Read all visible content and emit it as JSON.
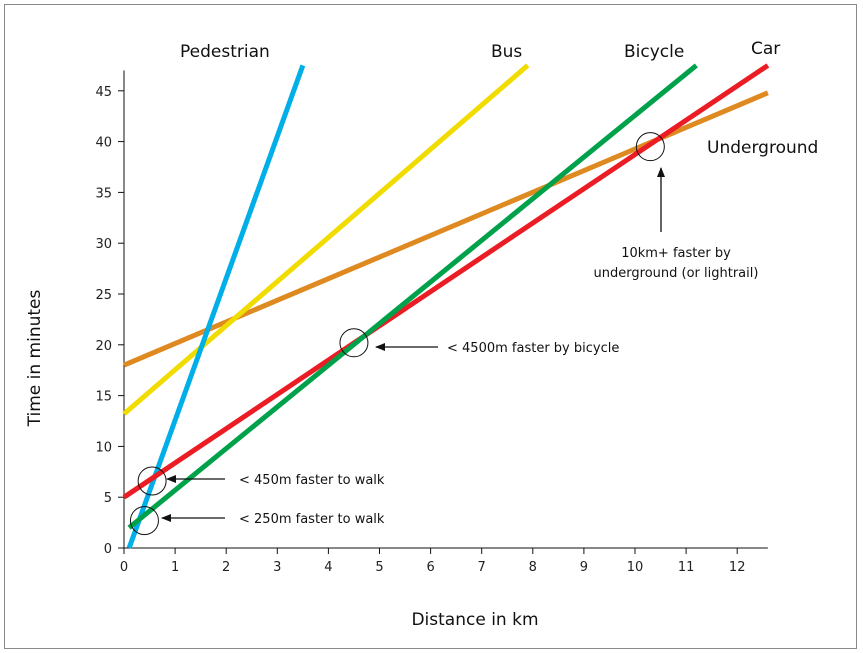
{
  "chart_data": {
    "type": "line",
    "title": "",
    "xlabel": "Distance in km",
    "ylabel": "Time in minutes",
    "xlim": [
      0,
      12.6
    ],
    "ylim": [
      0,
      47
    ],
    "x_ticks": [
      "0",
      "1",
      "2",
      "3",
      "4",
      "5",
      "6",
      "7",
      "8",
      "9",
      "10",
      "11",
      "12"
    ],
    "y_ticks": [
      "0",
      "5",
      "10",
      "15",
      "20",
      "25",
      "30",
      "35",
      "40",
      "45"
    ],
    "grid": false,
    "series": [
      {
        "name": "Pedestrian",
        "color": "#00aee8",
        "x": [
          0.1,
          3.5
        ],
        "y": [
          0,
          47.5
        ]
      },
      {
        "name": "Bus",
        "color": "#f1dc00",
        "x": [
          0,
          7.9
        ],
        "y": [
          13.2,
          47.5
        ]
      },
      {
        "name": "Bicycle",
        "color": "#00a14b",
        "x": [
          0.1,
          11.2
        ],
        "y": [
          2,
          47.5
        ]
      },
      {
        "name": "Car",
        "color": "#ec1c24",
        "x": [
          0,
          12.6
        ],
        "y": [
          5,
          47.5
        ]
      },
      {
        "name": "Underground",
        "color": "#de8a20",
        "x": [
          0,
          12.6
        ],
        "y": [
          18,
          44.8
        ]
      }
    ],
    "annotations": [
      {
        "id": "a1",
        "lines": [
          "10km+ faster by",
          "underground (or lightrail)"
        ],
        "circle": [
          10.3,
          39.5
        ]
      },
      {
        "id": "a2",
        "lines": [
          "< 4500m faster by bicycle"
        ],
        "circle": [
          4.5,
          20.2
        ]
      },
      {
        "id": "a3",
        "lines": [
          "< 450m faster to walk"
        ],
        "circle": [
          0.55,
          6.6
        ]
      },
      {
        "id": "a4",
        "lines": [
          "< 250m faster to walk"
        ],
        "circle": [
          0.4,
          2.7
        ]
      }
    ]
  }
}
